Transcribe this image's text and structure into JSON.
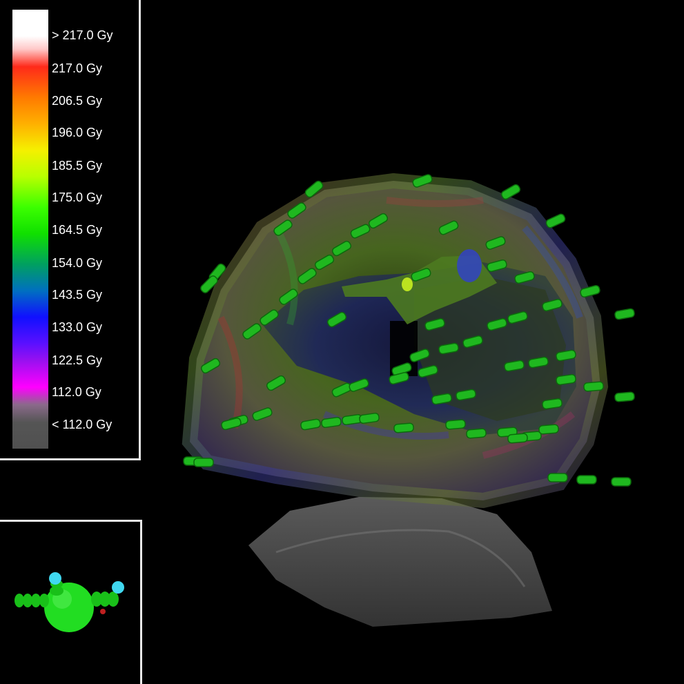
{
  "legend": {
    "labels": [
      "> 217.0 Gy",
      "217.0 Gy",
      "206.5 Gy",
      "196.0 Gy",
      "185.5 Gy",
      "175.0 Gy",
      "164.5 Gy",
      "154.0 Gy",
      "143.5 Gy",
      "133.0 Gy",
      "122.5 Gy",
      "112.0 Gy",
      "< 112.0 Gy"
    ]
  },
  "colors": {
    "panel_border": "#e8e8e8",
    "seed_green": "#1fb81f",
    "organ_grey": "#5a5a5a",
    "orientation_sphere": "#22dd22",
    "orientation_tip": "#40d8f0"
  },
  "icons": {
    "orientation": "orientation-widget-icon"
  }
}
